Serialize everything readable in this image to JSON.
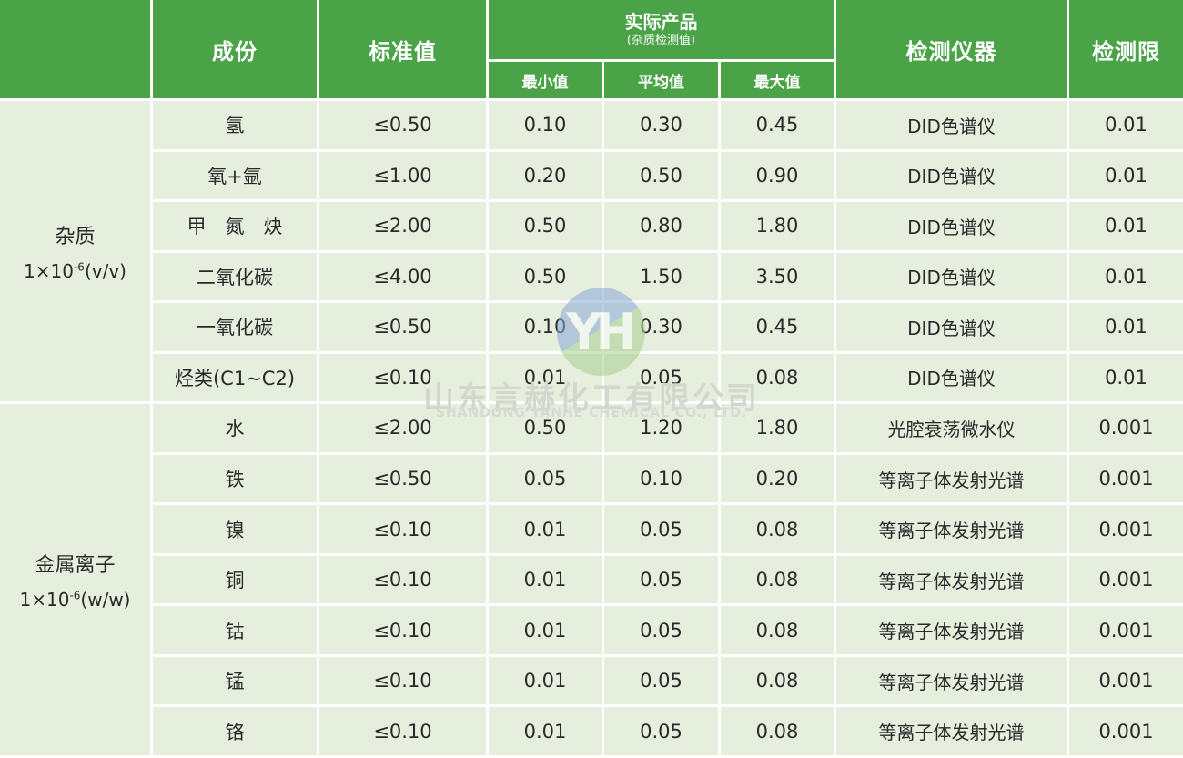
{
  "table": {
    "header": {
      "component": "成份",
      "standard_value": "标准值",
      "actual_product": "实际产品",
      "actual_product_note": "(杂质检测值)",
      "min": "最小值",
      "avg": "平均值",
      "max": "最大值",
      "instrument": "检测仪器",
      "detection_limit": "检测限"
    },
    "groups": [
      {
        "label": "杂质",
        "unit_base": "1×10",
        "unit_exponent": "-6",
        "unit_suffix": "(v/v)",
        "rows": [
          {
            "component": "氢",
            "standard": "≤0.50",
            "min": "0.10",
            "avg": "0.30",
            "max": "0.45",
            "instrument": "DID色谱仪",
            "limit": "0.01"
          },
          {
            "component": "氧+氩",
            "standard": "≤1.00",
            "min": "0.20",
            "avg": "0.50",
            "max": "0.90",
            "instrument": "DID色谱仪",
            "limit": "0.01"
          },
          {
            "component": "甲　氮　炔",
            "standard": "≤2.00",
            "min": "0.50",
            "avg": "0.80",
            "max": "1.80",
            "instrument": "DID色谱仪",
            "limit": "0.01"
          },
          {
            "component": "二氧化碳",
            "standard": "≤4.00",
            "min": "0.50",
            "avg": "1.50",
            "max": "3.50",
            "instrument": "DID色谱仪",
            "limit": "0.01"
          },
          {
            "component": "一氧化碳",
            "standard": "≤0.50",
            "min": "0.10",
            "avg": "0.30",
            "max": "0.45",
            "instrument": "DID色谱仪",
            "limit": "0.01"
          },
          {
            "component": "烃类(C1~C2)",
            "standard": "≤0.10",
            "min": "0.01",
            "avg": "0.05",
            "max": "0.08",
            "instrument": "DID色谱仪",
            "limit": "0.01"
          }
        ]
      },
      {
        "label": "金属离子",
        "unit_base": "1×10",
        "unit_exponent": "-6",
        "unit_suffix": "(w/w)",
        "rows": [
          {
            "component": "水",
            "standard": "≤2.00",
            "min": "0.50",
            "avg": "1.20",
            "max": "1.80",
            "instrument": "光腔衰荡微水仪",
            "limit": "0.001"
          },
          {
            "component": "铁",
            "standard": "≤0.50",
            "min": "0.05",
            "avg": "0.10",
            "max": "0.20",
            "instrument": "等离子体发射光谱",
            "limit": "0.001"
          },
          {
            "component": "镍",
            "standard": "≤0.10",
            "min": "0.01",
            "avg": "0.05",
            "max": "0.08",
            "instrument": "等离子体发射光谱",
            "limit": "0.001"
          },
          {
            "component": "铜",
            "standard": "≤0.10",
            "min": "0.01",
            "avg": "0.05",
            "max": "0.08",
            "instrument": "等离子体发射光谱",
            "limit": "0.001"
          },
          {
            "component": "钴",
            "standard": "≤0.10",
            "min": "0.01",
            "avg": "0.05",
            "max": "0.08",
            "instrument": "等离子体发射光谱",
            "limit": "0.001"
          },
          {
            "component": "锰",
            "standard": "≤0.10",
            "min": "0.01",
            "avg": "0.05",
            "max": "0.08",
            "instrument": "等离子体发射光谱",
            "limit": "0.001"
          },
          {
            "component": "铬",
            "standard": "≤0.10",
            "min": "0.01",
            "avg": "0.05",
            "max": "0.08",
            "instrument": "等离子体发射光谱",
            "limit": "0.001"
          }
        ]
      }
    ]
  },
  "watermark": {
    "logo_initials": "YH",
    "company_cn": "山东言赫化工有限公司",
    "company_en": "SHANDONG YANHE CHEMICAL CO., LTD."
  },
  "colors": {
    "header_green": "#4aa447",
    "cell_background": "#e6eedd",
    "grid_line": "#ffffff",
    "body_text": "#2a2a2a",
    "header_text": "#ffffff",
    "watermark_gray": "#d3d7ce",
    "logo_blue": "#8aa9da",
    "logo_green": "#a8ce90"
  }
}
